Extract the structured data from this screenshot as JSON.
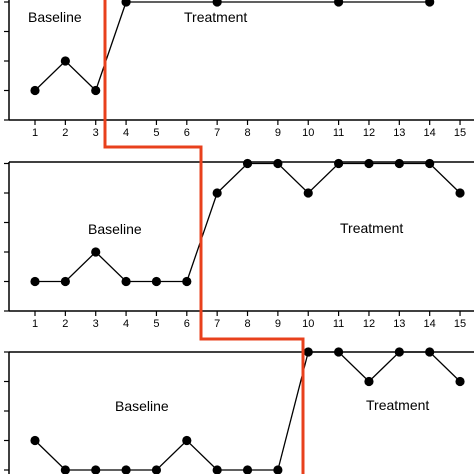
{
  "chart_data": {
    "type": "line",
    "x": [
      1,
      2,
      3,
      4,
      5,
      6,
      7,
      8,
      9,
      10,
      11,
      12,
      13,
      14,
      15
    ],
    "phase_line_color": "#e8401c",
    "panels": [
      {
        "baseline_label": "Baseline",
        "treatment_label": "Treatment",
        "baseline_end_after": 3,
        "baseline": {
          "x": [
            1,
            2,
            3
          ],
          "y": [
            1,
            2,
            1
          ]
        },
        "treatment": {
          "x": [
            4,
            7,
            11,
            14
          ],
          "y": [
            4,
            4,
            4,
            4
          ]
        },
        "ylim": [
          0,
          4
        ]
      },
      {
        "baseline_label": "Baseline",
        "treatment_label": "Treatment",
        "baseline_end_after": 6,
        "baseline": {
          "x": [
            1,
            2,
            3,
            4,
            5,
            6
          ],
          "y": [
            1,
            1,
            2,
            1,
            1,
            1
          ]
        },
        "treatment": {
          "x": [
            7,
            8,
            9,
            10,
            11,
            12,
            13,
            14,
            15
          ],
          "y": [
            4,
            5,
            5,
            4,
            5,
            5,
            5,
            5,
            4
          ]
        },
        "ylim": [
          0,
          5
        ]
      },
      {
        "baseline_label": "Baseline",
        "treatment_label": "Treatment",
        "baseline_end_after": 9,
        "baseline": {
          "x": [
            1,
            2,
            3,
            4,
            5,
            6,
            7,
            8,
            9
          ],
          "y": [
            1,
            0,
            0,
            0,
            0,
            1,
            0,
            0,
            0
          ]
        },
        "treatment": {
          "x": [
            10,
            11,
            12,
            13,
            14,
            15
          ],
          "y": [
            4,
            4,
            3,
            4,
            4,
            3
          ]
        },
        "ylim": [
          0,
          4
        ]
      }
    ]
  }
}
